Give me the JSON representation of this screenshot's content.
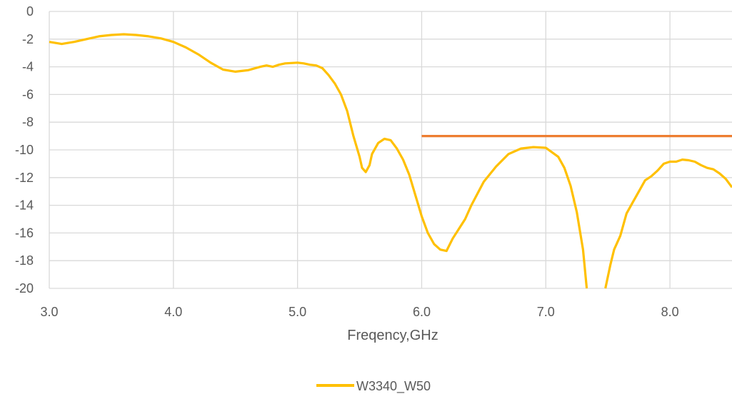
{
  "chart_data": {
    "type": "line",
    "title": "",
    "xlabel": "Freqency,GHz",
    "ylabel": "",
    "xlim": [
      3.0,
      8.5
    ],
    "ylim": [
      -20,
      0
    ],
    "x_ticks": [
      "3.0",
      "4.0",
      "5.0",
      "6.0",
      "7.0",
      "8.0"
    ],
    "y_ticks": [
      "0",
      "-2",
      "-4",
      "-6",
      "-8",
      "-10",
      "-12",
      "-14",
      "-16",
      "-18",
      "-20"
    ],
    "grid": true,
    "legend_position": "bottom",
    "series": [
      {
        "name": "W3340_W50",
        "color": "#FFC000",
        "x": [
          3.0,
          3.1,
          3.2,
          3.3,
          3.4,
          3.5,
          3.6,
          3.7,
          3.8,
          3.9,
          4.0,
          4.1,
          4.2,
          4.3,
          4.4,
          4.5,
          4.6,
          4.7,
          4.75,
          4.8,
          4.85,
          4.9,
          5.0,
          5.05,
          5.1,
          5.15,
          5.2,
          5.25,
          5.3,
          5.35,
          5.4,
          5.45,
          5.5,
          5.52,
          5.55,
          5.58,
          5.6,
          5.65,
          5.7,
          5.75,
          5.8,
          5.85,
          5.9,
          5.95,
          6.0,
          6.05,
          6.1,
          6.15,
          6.2,
          6.25,
          6.3,
          6.35,
          6.4,
          6.5,
          6.6,
          6.7,
          6.8,
          6.9,
          7.0,
          7.1,
          7.15,
          7.2,
          7.25,
          7.3,
          7.33
        ],
        "values": [
          -2.2,
          -2.35,
          -2.2,
          -2.0,
          -1.8,
          -1.7,
          -1.65,
          -1.7,
          -1.8,
          -1.95,
          -2.2,
          -2.6,
          -3.1,
          -3.7,
          -4.2,
          -4.35,
          -4.25,
          -4.0,
          -3.9,
          -4.0,
          -3.85,
          -3.75,
          -3.7,
          -3.75,
          -3.85,
          -3.9,
          -4.1,
          -4.6,
          -5.2,
          -6.0,
          -7.2,
          -9.0,
          -10.5,
          -11.3,
          -11.6,
          -11.1,
          -10.3,
          -9.5,
          -9.2,
          -9.3,
          -9.9,
          -10.7,
          -11.8,
          -13.3,
          -14.8,
          -16.0,
          -16.8,
          -17.2,
          -17.3,
          -16.4,
          -15.7,
          -15.0,
          -14.0,
          -12.3,
          -11.2,
          -10.3,
          -9.9,
          -9.8,
          -9.85,
          -10.5,
          -11.3,
          -12.6,
          -14.5,
          -17.2,
          -20.0
        ]
      },
      {
        "name": "",
        "color": "#FFC000",
        "x": [
          7.48,
          7.52,
          7.55,
          7.6,
          7.65,
          7.7,
          7.8,
          7.85,
          7.9,
          7.95,
          8.0,
          8.05,
          8.1,
          8.15,
          8.2,
          8.25,
          8.3,
          8.35,
          8.4,
          8.45,
          8.5
        ],
        "values": [
          -20.0,
          -18.3,
          -17.2,
          -16.2,
          -14.6,
          -13.8,
          -12.2,
          -11.9,
          -11.5,
          -11.0,
          -10.85,
          -10.85,
          -10.7,
          -10.75,
          -10.85,
          -11.1,
          -11.3,
          -11.4,
          -11.7,
          -12.1,
          -12.7
        ]
      },
      {
        "name": "",
        "color": "#ED7D31",
        "x": [
          6.0,
          8.5
        ],
        "values": [
          -9.0,
          -9.0
        ]
      }
    ]
  }
}
